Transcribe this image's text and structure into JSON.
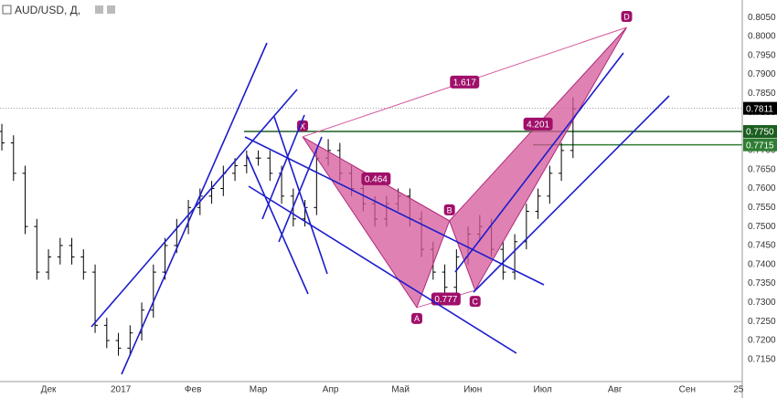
{
  "header": {
    "symbol": "AUD/USD, Д,"
  },
  "chart_data": {
    "type": "ohlc",
    "x": [
      10,
      15,
      20,
      25,
      30,
      35,
      40,
      45,
      50,
      55,
      60,
      65,
      70,
      75,
      80,
      85,
      90,
      95,
      100,
      105,
      110,
      115,
      120,
      125,
      130,
      135,
      140,
      145,
      150,
      155,
      160,
      165,
      170,
      175,
      180,
      185,
      190,
      195,
      200,
      205,
      210,
      215,
      220,
      225,
      230,
      235,
      240,
      245,
      250,
      255
    ],
    "open": [
      0.775,
      0.772,
      0.764,
      0.75,
      0.738,
      0.742,
      0.745,
      0.742,
      0.738,
      0.724,
      0.72,
      0.718,
      0.722,
      0.728,
      0.738,
      0.745,
      0.75,
      0.755,
      0.758,
      0.76,
      0.764,
      0.766,
      0.768,
      0.768,
      0.764,
      0.758,
      0.752,
      0.755,
      0.768,
      0.77,
      0.764,
      0.76,
      0.756,
      0.752,
      0.756,
      0.758,
      0.752,
      0.744,
      0.738,
      0.734,
      0.742,
      0.748,
      0.75,
      0.744,
      0.738,
      0.746,
      0.754,
      0.758,
      0.764,
      0.77
    ],
    "high": [
      0.777,
      0.774,
      0.766,
      0.752,
      0.744,
      0.747,
      0.747,
      0.744,
      0.74,
      0.726,
      0.722,
      0.724,
      0.73,
      0.74,
      0.747,
      0.752,
      0.757,
      0.76,
      0.762,
      0.766,
      0.768,
      0.77,
      0.77,
      0.77,
      0.766,
      0.76,
      0.757,
      0.77,
      0.773,
      0.772,
      0.766,
      0.762,
      0.758,
      0.758,
      0.76,
      0.76,
      0.754,
      0.746,
      0.74,
      0.744,
      0.75,
      0.753,
      0.752,
      0.746,
      0.748,
      0.756,
      0.76,
      0.766,
      0.772,
      0.784
    ],
    "low": [
      0.77,
      0.762,
      0.748,
      0.736,
      0.736,
      0.74,
      0.74,
      0.736,
      0.722,
      0.718,
      0.716,
      0.716,
      0.72,
      0.726,
      0.736,
      0.743,
      0.748,
      0.753,
      0.756,
      0.758,
      0.762,
      0.764,
      0.766,
      0.762,
      0.756,
      0.75,
      0.75,
      0.753,
      0.766,
      0.762,
      0.758,
      0.754,
      0.75,
      0.75,
      0.754,
      0.75,
      0.742,
      0.736,
      0.732,
      0.732,
      0.74,
      0.746,
      0.742,
      0.736,
      0.736,
      0.744,
      0.752,
      0.756,
      0.762,
      0.768
    ],
    "close": [
      0.772,
      0.764,
      0.75,
      0.738,
      0.742,
      0.745,
      0.742,
      0.738,
      0.724,
      0.72,
      0.718,
      0.722,
      0.728,
      0.738,
      0.745,
      0.75,
      0.755,
      0.758,
      0.76,
      0.764,
      0.766,
      0.768,
      0.768,
      0.764,
      0.758,
      0.752,
      0.755,
      0.768,
      0.77,
      0.764,
      0.76,
      0.756,
      0.752,
      0.756,
      0.758,
      0.752,
      0.744,
      0.738,
      0.734,
      0.742,
      0.748,
      0.75,
      0.744,
      0.738,
      0.746,
      0.754,
      0.758,
      0.764,
      0.77,
      0.781
    ],
    "color": "#000000",
    "xlim": [
      9.2,
      327.6
    ],
    "ylim": [
      0.7092,
      0.8096
    ],
    "xticks": [
      {
        "value": 30,
        "label": "Дек"
      },
      {
        "value": 61,
        "label": "2017"
      },
      {
        "value": 92,
        "label": "Фев"
      },
      {
        "value": 120,
        "label": "Мар"
      },
      {
        "value": 151,
        "label": "Апр"
      },
      {
        "value": 181,
        "label": "Май"
      },
      {
        "value": 212,
        "label": "Июн"
      },
      {
        "value": 242,
        "label": "Июл"
      },
      {
        "value": 273,
        "label": "Авг"
      },
      {
        "value": 304,
        "label": "Сен"
      },
      {
        "value": 326,
        "label": "25"
      }
    ],
    "yticks": [
      {
        "value": 0.715,
        "label": "0.7150"
      },
      {
        "value": 0.72,
        "label": "0.7200"
      },
      {
        "value": 0.725,
        "label": "0.7250"
      },
      {
        "value": 0.73,
        "label": "0.7300"
      },
      {
        "value": 0.735,
        "label": "0.7350"
      },
      {
        "value": 0.74,
        "label": "0.7400"
      },
      {
        "value": 0.745,
        "label": "0.7450"
      },
      {
        "value": 0.75,
        "label": "0.7500"
      },
      {
        "value": 0.755,
        "label": "0.7550"
      },
      {
        "value": 0.76,
        "label": "0.7600"
      },
      {
        "value": 0.765,
        "label": "0.7650"
      },
      {
        "value": 0.77,
        "label": "0.7700"
      },
      {
        "value": 0.775,
        "label": "0.7750"
      },
      {
        "value": 0.78,
        "label": "0.7800"
      },
      {
        "value": 0.785,
        "label": "0.7850"
      },
      {
        "value": 0.79,
        "label": "0.7900"
      },
      {
        "value": 0.795,
        "label": "0.7950"
      },
      {
        "value": 0.8,
        "label": "0.8000"
      },
      {
        "value": 0.805,
        "label": "0.8050"
      }
    ],
    "grid": true,
    "levels": [
      {
        "value": 0.7811,
        "label": "0.7811",
        "color": "#000000"
      },
      {
        "value": 0.775,
        "label": "0.7750",
        "color": "#1b5e20"
      },
      {
        "value": 0.7715,
        "label": "0.7715",
        "color": "#2e7d32"
      }
    ],
    "pattern": {
      "color": "#d4589a",
      "points": [
        {
          "label": "X",
          "x": 139,
          "y": 0.7736
        },
        {
          "label": "A",
          "x": 188,
          "y": 0.7287
        },
        {
          "label": "B",
          "x": 202,
          "y": 0.7515
        },
        {
          "label": "C",
          "x": 213,
          "y": 0.7332
        },
        {
          "label": "D",
          "x": 278,
          "y": 0.8024
        }
      ],
      "ratios": [
        1.617,
        0.464,
        0.777,
        4.201
      ]
    }
  }
}
